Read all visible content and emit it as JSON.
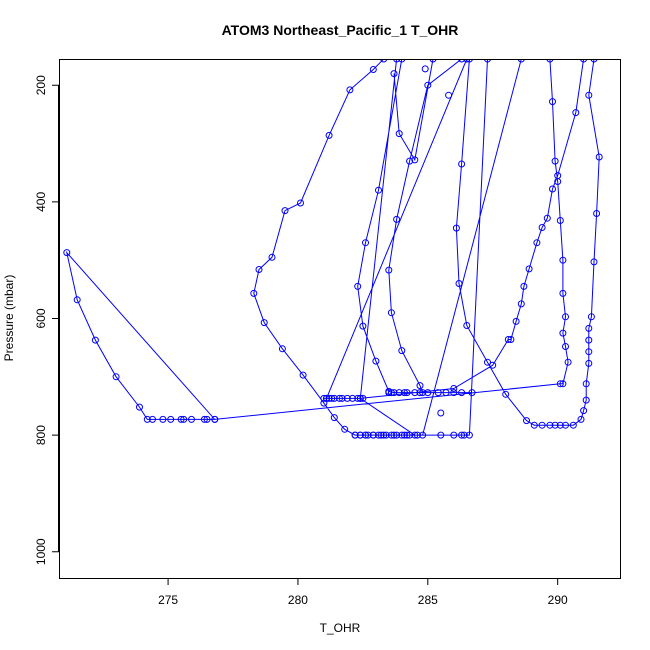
{
  "chart_data": {
    "type": "line",
    "title": "ATOM3 Northeast_Pacific_1 T_OHR",
    "xlabel": "T_OHR",
    "ylabel": "Pressure (mbar)",
    "xlim": [
      270.8,
      292.4
    ],
    "ylim": [
      1045,
      155
    ],
    "y_reversed": true,
    "x_ticks": [
      275,
      280,
      285,
      290
    ],
    "y_ticks": [
      200,
      400,
      600,
      800,
      1000
    ],
    "grid": false,
    "legend": "none",
    "series_color": "#0000ff",
    "marker": "open-circle",
    "points": [
      [
        276.8,
        773
      ],
      [
        276.5,
        773
      ],
      [
        276.4,
        773
      ],
      [
        275.9,
        773
      ],
      [
        275.6,
        773
      ],
      [
        275.5,
        773
      ],
      [
        275.1,
        773
      ],
      [
        274.8,
        773
      ],
      [
        274.4,
        773
      ],
      [
        274.2,
        773
      ],
      [
        273.9,
        752
      ],
      [
        273.0,
        700
      ],
      [
        272.2,
        637
      ],
      [
        271.5,
        568
      ],
      [
        271.1,
        487
      ],
      [
        276.8,
        773
      ],
      [
        290.1,
        712
      ],
      [
        290.2,
        712
      ],
      [
        290.4,
        675
      ],
      [
        290.3,
        648
      ],
      [
        290.2,
        625
      ],
      [
        290.3,
        597
      ],
      [
        290.2,
        557
      ],
      [
        290.2,
        500
      ],
      [
        290.1,
        432
      ],
      [
        290.0,
        365
      ],
      [
        289.9,
        330
      ],
      [
        289.8,
        228
      ],
      [
        289.7,
        155
      ],
      [
        288.6,
        155
      ],
      [
        284.8,
        800
      ],
      [
        284.6,
        800
      ],
      [
        284.3,
        800
      ],
      [
        284.1,
        800
      ],
      [
        283.8,
        800
      ],
      [
        283.6,
        800
      ],
      [
        283.3,
        800
      ],
      [
        283.1,
        800
      ],
      [
        282.9,
        800
      ],
      [
        282.7,
        800
      ],
      [
        282.6,
        800
      ],
      [
        282.4,
        800
      ],
      [
        282.2,
        800
      ],
      [
        281.8,
        790
      ],
      [
        281.4,
        770
      ],
      [
        281.0,
        745
      ],
      [
        280.2,
        697
      ],
      [
        279.4,
        652
      ],
      [
        278.7,
        607
      ],
      [
        278.3,
        557
      ],
      [
        278.5,
        516
      ],
      [
        279.0,
        495
      ],
      [
        279.5,
        415
      ],
      [
        280.1,
        402
      ],
      [
        281.2,
        286
      ],
      [
        282.0,
        208
      ],
      [
        282.9,
        173
      ],
      [
        283.3,
        155
      ],
      [
        283.8,
        155
      ],
      [
        282.4,
        737
      ],
      [
        282.3,
        737
      ],
      [
        282.1,
        737
      ],
      [
        281.9,
        737
      ],
      [
        281.7,
        737
      ],
      [
        281.6,
        737
      ],
      [
        281.4,
        737
      ],
      [
        281.3,
        737
      ],
      [
        281.2,
        737
      ],
      [
        281.1,
        737
      ],
      [
        281.0,
        737
      ],
      [
        281.1,
        737
      ],
      [
        286.5,
        155
      ],
      [
        287.3,
        155
      ],
      [
        286.6,
        800
      ],
      [
        286.4,
        800
      ],
      [
        286.3,
        800
      ],
      [
        286.0,
        800
      ],
      [
        285.5,
        800
      ],
      [
        282.2,
        800
      ],
      [
        282.4,
        800
      ],
      [
        282.6,
        800
      ],
      [
        282.9,
        800
      ],
      [
        283.2,
        800
      ],
      [
        283.4,
        800
      ],
      [
        283.7,
        800
      ],
      [
        284.0,
        800
      ],
      [
        284.2,
        800
      ],
      [
        284.5,
        800
      ],
      [
        282.4,
        737
      ],
      [
        286.0,
        720
      ],
      [
        287.5,
        680
      ],
      [
        288.1,
        636
      ],
      [
        288.2,
        636
      ],
      [
        288.4,
        605
      ],
      [
        288.6,
        575
      ],
      [
        288.7,
        545
      ],
      [
        288.9,
        515
      ],
      [
        289.2,
        470
      ],
      [
        289.4,
        444
      ],
      [
        289.6,
        428
      ],
      [
        289.8,
        378
      ],
      [
        290.0,
        355
      ],
      [
        290.7,
        247
      ],
      [
        291.0,
        155
      ],
      [
        291.4,
        155
      ],
      [
        291.2,
        217
      ],
      [
        291.6,
        323
      ],
      [
        291.5,
        420
      ],
      [
        291.4,
        503
      ],
      [
        291.3,
        597
      ],
      [
        291.2,
        617
      ],
      [
        291.2,
        637
      ],
      [
        291.2,
        657
      ],
      [
        291.2,
        677
      ],
      [
        291.1,
        712
      ],
      [
        291.1,
        740
      ],
      [
        291.0,
        758
      ],
      [
        290.9,
        773
      ],
      [
        290.6,
        783
      ],
      [
        290.3,
        783
      ],
      [
        290.1,
        783
      ],
      [
        289.9,
        783
      ],
      [
        289.7,
        783
      ],
      [
        289.4,
        783
      ],
      [
        289.1,
        783
      ],
      [
        288.8,
        775
      ],
      [
        288.0,
        730
      ],
      [
        287.3,
        675
      ],
      [
        286.5,
        612
      ],
      [
        286.2,
        540
      ],
      [
        286.1,
        445
      ],
      [
        286.3,
        335
      ],
      [
        286.6,
        155
      ],
      [
        284.0,
        155
      ],
      [
        283.1,
        380
      ],
      [
        282.6,
        470
      ],
      [
        282.3,
        545
      ],
      [
        282.5,
        613
      ],
      [
        283.0,
        673
      ],
      [
        283.5,
        725
      ],
      [
        283.7,
        727
      ],
      [
        283.9,
        727
      ],
      [
        284.2,
        727
      ],
      [
        284.5,
        727
      ],
      [
        284.7,
        727
      ],
      [
        285.0,
        727
      ],
      [
        285.4,
        727
      ],
      [
        285.7,
        727
      ],
      [
        286.0,
        727
      ],
      [
        286.3,
        727
      ],
      [
        286.7,
        727
      ],
      [
        284.8,
        727
      ],
      [
        284.7,
        715
      ],
      [
        284.0,
        655
      ],
      [
        283.6,
        590
      ],
      [
        283.5,
        517
      ],
      [
        283.8,
        430
      ],
      [
        284.3,
        330
      ],
      [
        285.0,
        200
      ],
      [
        286.3,
        155
      ],
      [
        285.2,
        155
      ],
      [
        284.5,
        328
      ],
      [
        283.9,
        283
      ],
      [
        283.7,
        180
      ]
    ],
    "extra_points": [
      [
        284.9,
        172
      ],
      [
        285.8,
        217
      ],
      [
        282.5,
        737
      ],
      [
        284.1,
        727
      ],
      [
        285.5,
        762
      ],
      [
        283.5,
        727
      ],
      [
        283.6,
        727
      ]
    ]
  }
}
